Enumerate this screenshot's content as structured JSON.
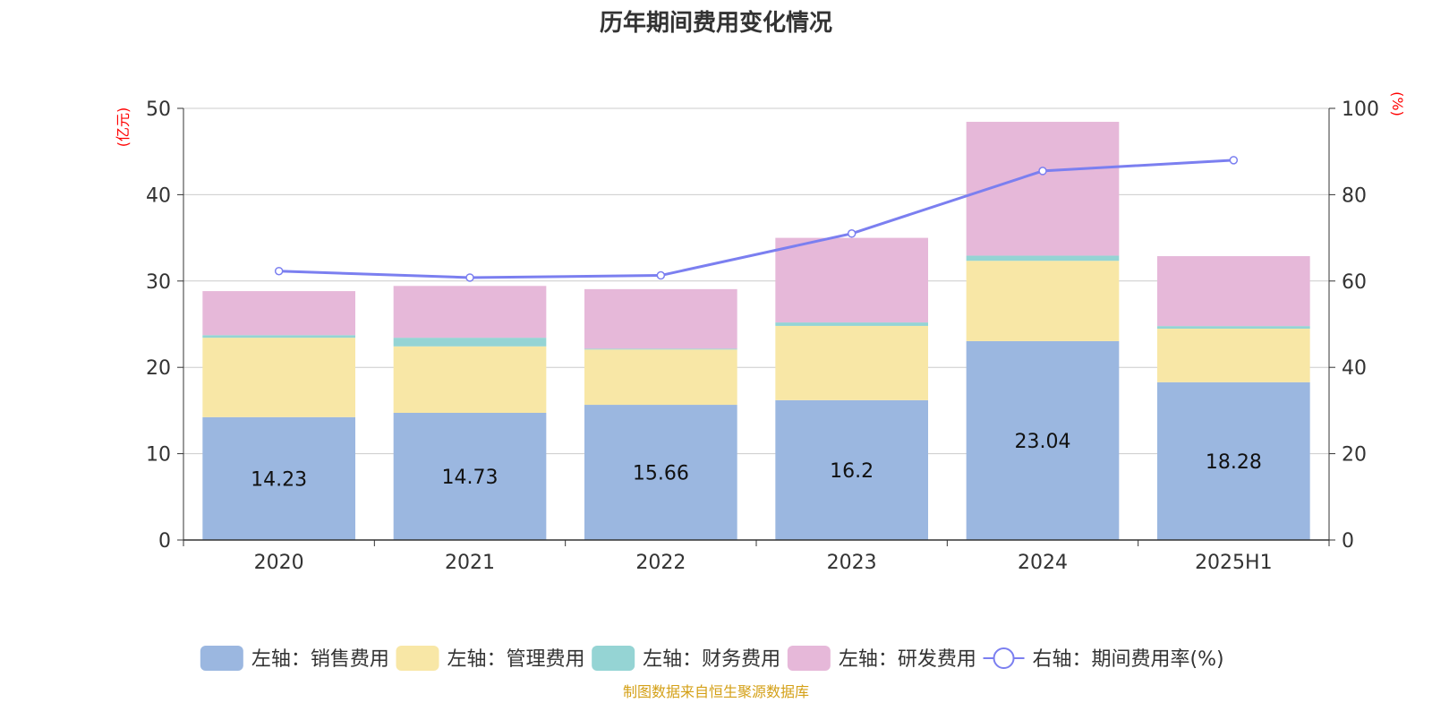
{
  "chart_data": {
    "type": "bar",
    "stacked": true,
    "title": "历年期间费用变化情况",
    "left_axis_unit": "(亿元)",
    "right_axis_unit": "(%)",
    "categories": [
      "2020",
      "2021",
      "2022",
      "2023",
      "2024",
      "2025H1"
    ],
    "ylim_left": [
      0,
      50
    ],
    "yticks_left": [
      0,
      10,
      20,
      30,
      40,
      50
    ],
    "ylim_right": [
      0,
      100
    ],
    "yticks_right": [
      0,
      20,
      40,
      60,
      80,
      100
    ],
    "grid": true,
    "legend_position": "bottom",
    "series": [
      {
        "name": "左轴：销售费用",
        "axis": "left",
        "kind": "bar",
        "color": "#9bb7e0",
        "values": [
          14.23,
          14.73,
          15.66,
          16.2,
          23.04,
          18.28
        ],
        "show_labels": true
      },
      {
        "name": "左轴：管理费用",
        "axis": "left",
        "kind": "bar",
        "color": "#f8e7a6",
        "values": [
          9.2,
          7.7,
          6.4,
          8.6,
          9.3,
          6.2
        ]
      },
      {
        "name": "左轴：财务费用",
        "axis": "left",
        "kind": "bar",
        "color": "#95d4d4",
        "values": [
          0.3,
          1.0,
          0.1,
          0.4,
          0.6,
          0.3
        ]
      },
      {
        "name": "左轴：研发费用",
        "axis": "left",
        "kind": "bar",
        "color": "#e6b8d9",
        "values": [
          5.1,
          6.0,
          6.9,
          9.8,
          15.5,
          8.1
        ]
      },
      {
        "name": "右轴：期间费用率(%)",
        "axis": "right",
        "kind": "line",
        "color": "#7b7ff0",
        "values": [
          62.3,
          60.8,
          61.3,
          71.0,
          85.5,
          88.0
        ]
      }
    ],
    "source_note": "制图数据来自恒生聚源数据库",
    "source_note_color": "#d4a017"
  }
}
